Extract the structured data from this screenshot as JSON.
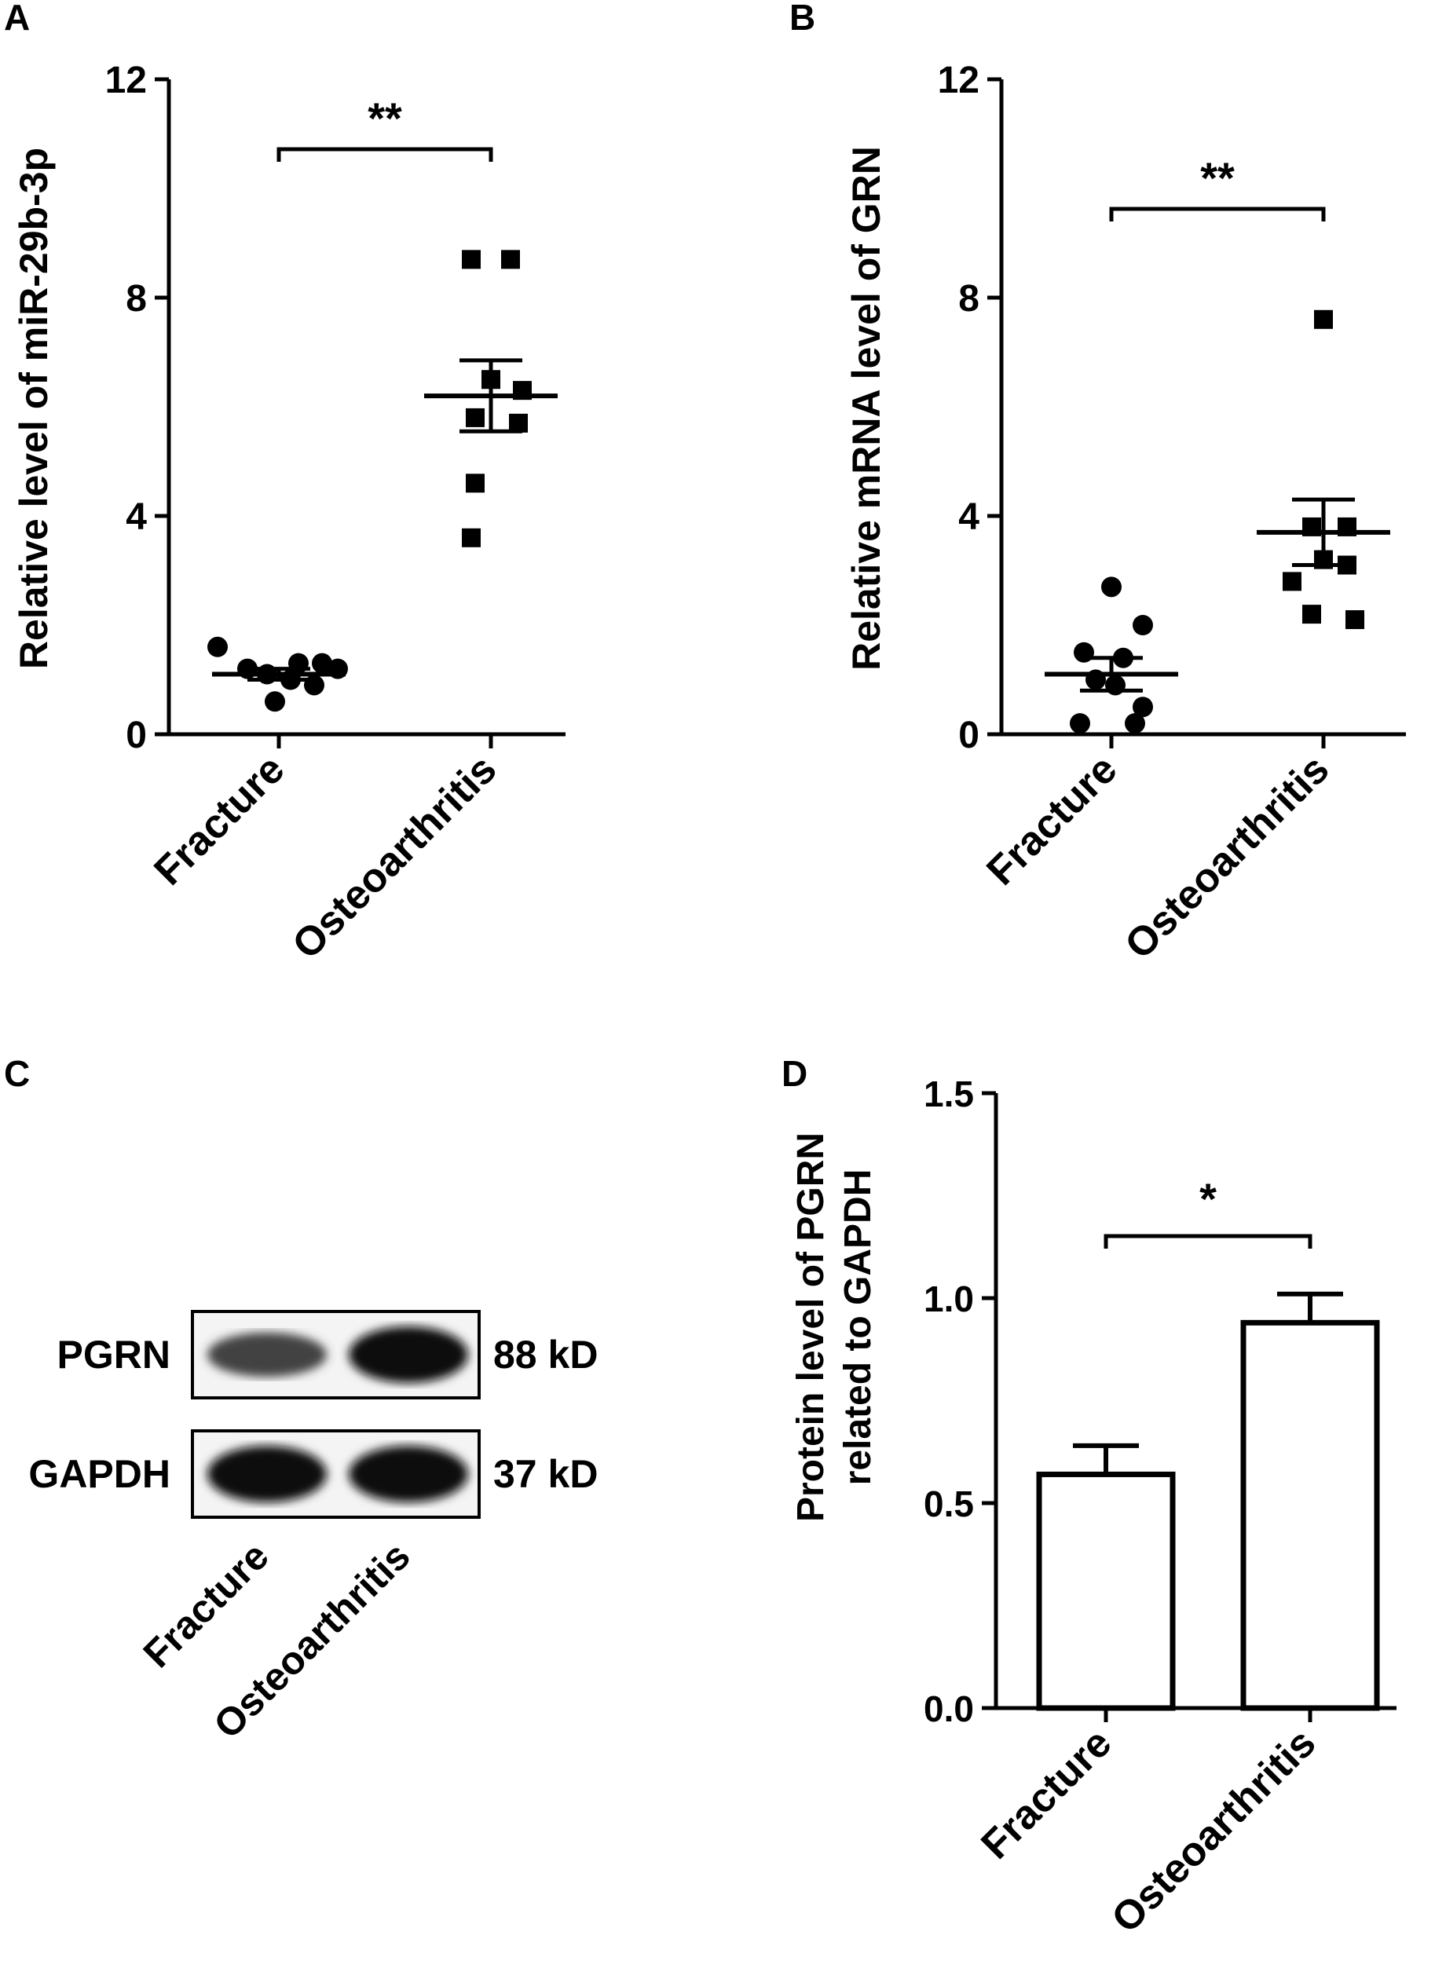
{
  "chart_data": [
    {
      "panel": "A",
      "type": "scatter",
      "ylabel": "Relative level of miR-29b-3p",
      "ylim": [
        0,
        12
      ],
      "yticks": [
        "0",
        "4",
        "8",
        "12"
      ],
      "categories": [
        "Fracture",
        "Osteoarthritis"
      ],
      "series": [
        {
          "category": "Fracture",
          "marker": "circle",
          "values": [
            1.6,
            1.3,
            1.3,
            1.2,
            1.2,
            1.1,
            1.0,
            0.9,
            0.6
          ],
          "mean": 1.1,
          "sem": 0.1
        },
        {
          "category": "Osteoarthritis",
          "marker": "square",
          "values": [
            8.7,
            8.7,
            6.5,
            6.3,
            5.8,
            5.7,
            4.6,
            3.6
          ],
          "mean": 6.2,
          "sem": 0.65
        }
      ],
      "significance": "**"
    },
    {
      "panel": "B",
      "type": "scatter",
      "ylabel": "Relative mRNA level of GRN",
      "ylim": [
        0,
        12
      ],
      "yticks": [
        "0",
        "4",
        "8",
        "12"
      ],
      "categories": [
        "Fracture",
        "Osteoarthritis"
      ],
      "series": [
        {
          "category": "Fracture",
          "marker": "circle",
          "values": [
            2.7,
            2.0,
            1.5,
            1.4,
            1.0,
            0.9,
            0.5,
            0.2,
            0.2
          ],
          "mean": 1.1,
          "sem": 0.3
        },
        {
          "category": "Osteoarthritis",
          "marker": "square",
          "values": [
            7.6,
            3.8,
            3.8,
            3.2,
            3.1,
            2.8,
            2.2,
            2.1
          ],
          "mean": 3.7,
          "sem": 0.6
        }
      ],
      "significance": "**"
    },
    {
      "panel": "D",
      "type": "bar",
      "ylabel": "Protein level of PGRN related to GAPDH",
      "ylabel_lines": [
        "Protein level of PGRN",
        "related to GAPDH"
      ],
      "ylim": [
        0,
        1.5
      ],
      "yticks": [
        "0.0",
        "0.5",
        "1.0",
        "1.5"
      ],
      "categories": [
        "Fracture",
        "Osteoarthritis"
      ],
      "values": [
        0.57,
        0.94
      ],
      "errors": [
        0.07,
        0.07
      ],
      "significance": "*"
    }
  ],
  "panel_labels": {
    "a": "A",
    "b": "B",
    "c": "C",
    "d": "D"
  },
  "blot": {
    "proteins": [
      {
        "name": "PGRN",
        "size": "88 kD",
        "lane_intensity": [
          0.45,
          1.0
        ]
      },
      {
        "name": "GAPDH",
        "size": "37 kD",
        "lane_intensity": [
          1.0,
          1.0
        ]
      }
    ],
    "lanes": [
      "Fracture",
      "Osteoarthritis"
    ]
  }
}
